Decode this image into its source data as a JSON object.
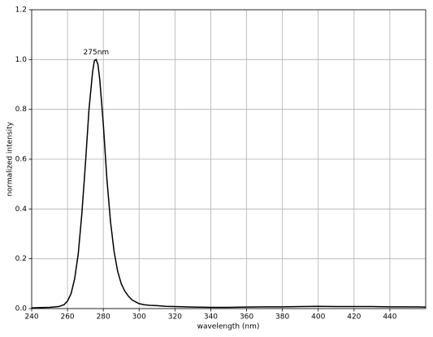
{
  "chart_data": {
    "type": "line",
    "xlabel": "wavelength (nm)",
    "ylabel": "normalized intensity",
    "annotations": [
      "275nm"
    ],
    "x": [
      240,
      245,
      250,
      255,
      258,
      260,
      262,
      264,
      266,
      268,
      270,
      272,
      274,
      275,
      276,
      277,
      278,
      280,
      282,
      284,
      286,
      288,
      290,
      292,
      294,
      296,
      298,
      300,
      303,
      306,
      310,
      315,
      320,
      330,
      340,
      350,
      360,
      370,
      380,
      390,
      400,
      410,
      420,
      430,
      440,
      450,
      460
    ],
    "series": [
      {
        "color": "#000000",
        "values": [
          0.003,
          0.004,
          0.005,
          0.008,
          0.015,
          0.03,
          0.06,
          0.12,
          0.22,
          0.38,
          0.58,
          0.8,
          0.95,
          0.995,
          1.0,
          0.98,
          0.92,
          0.74,
          0.52,
          0.35,
          0.23,
          0.15,
          0.1,
          0.07,
          0.05,
          0.035,
          0.027,
          0.02,
          0.015,
          0.013,
          0.012,
          0.009,
          0.008,
          0.006,
          0.005,
          0.005,
          0.006,
          0.007,
          0.007,
          0.008,
          0.009,
          0.008,
          0.008,
          0.008,
          0.007,
          0.007,
          0.006
        ]
      }
    ],
    "xlim": [
      240,
      460
    ],
    "ylim": [
      0,
      1.2
    ],
    "xticks": [
      240,
      260,
      280,
      300,
      320,
      340,
      360,
      380,
      400,
      420,
      440
    ],
    "yticks": [
      {
        "value": 0,
        "label": "0.0"
      },
      {
        "value": 0.2,
        "label": "0.2"
      },
      {
        "value": 0.4,
        "label": "0.4"
      },
      {
        "value": 0.6,
        "label": "0.6"
      },
      {
        "value": 0.8,
        "label": "0.8"
      },
      {
        "value": 1.0,
        "label": "1.0"
      },
      {
        "value": 1.2,
        "label": "1.2"
      }
    ],
    "grid": true
  }
}
